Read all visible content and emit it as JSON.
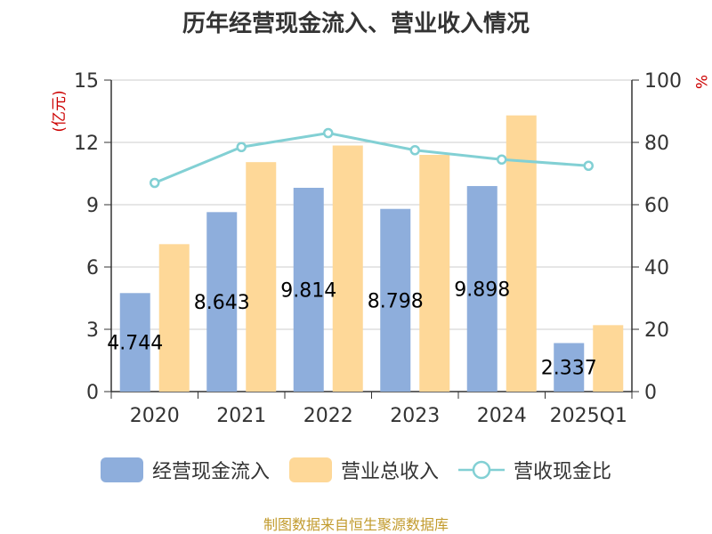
{
  "title": "历年经营现金流入、营业收入情况",
  "source": "制图数据来自恒生聚源数据库",
  "colors": {
    "cash": "#8eaedc",
    "revenue": "#fed898",
    "ratio": "#82d0d4",
    "axis_label": "#cc0000",
    "text": "#333333"
  },
  "chart_data": {
    "type": "bar",
    "categories": [
      "2020",
      "2021",
      "2022",
      "2023",
      "2024",
      "2025Q1"
    ],
    "series": [
      {
        "name": "经营现金流入",
        "axis": "left",
        "type": "bar",
        "values": [
          4.744,
          8.643,
          9.814,
          8.798,
          9.898,
          2.337
        ],
        "data_labels": [
          "4.744",
          "8.643",
          "9.814",
          "8.798",
          "9.898",
          "2.337"
        ]
      },
      {
        "name": "营业总收入",
        "axis": "left",
        "type": "bar",
        "values": [
          7.1,
          11.05,
          11.85,
          11.4,
          13.3,
          3.2
        ]
      },
      {
        "name": "营收现金比",
        "axis": "right",
        "type": "line",
        "values": [
          67,
          78.5,
          83,
          77.5,
          74.5,
          72.5
        ]
      }
    ],
    "ylabel": "(亿元)",
    "y2label": "%",
    "ylim": [
      0,
      15
    ],
    "y2lim": [
      0,
      100
    ],
    "yticks": [
      0,
      3,
      6,
      9,
      12,
      15
    ],
    "y2ticks": [
      0,
      20,
      40,
      60,
      80,
      100
    ],
    "grid": true,
    "legend_position": "bottom"
  }
}
